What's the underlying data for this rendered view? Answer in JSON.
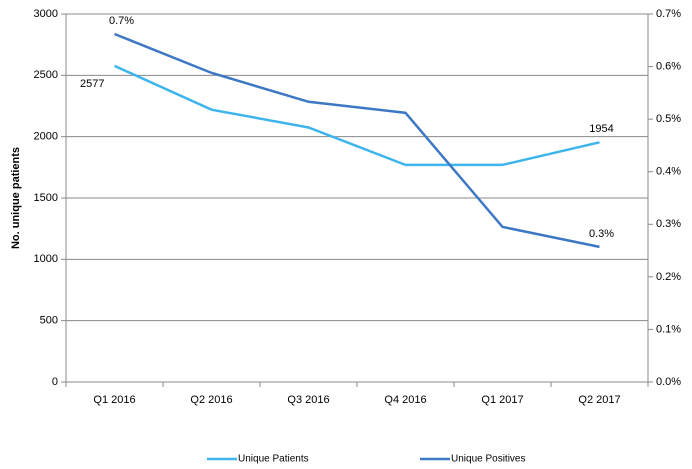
{
  "chart_data": {
    "type": "line",
    "y_label": "No. unique patients",
    "categories": [
      "Q1 2016",
      "Q2 2016",
      "Q3 2016",
      "Q4 2016",
      "Q1 2017",
      "Q2 2017"
    ],
    "series": [
      {
        "name": "Unique Patients",
        "color": "#3db5ec",
        "values": [
          2577,
          2220,
          2075,
          1770,
          1770,
          1954
        ],
        "value_labels": [
          "2577",
          null,
          null,
          null,
          null,
          "1954"
        ]
      },
      {
        "name": "Unique Positives",
        "color": "#3d78c4",
        "axis": "y2",
        "values": [
          0.662,
          0.588,
          0.533,
          0.512,
          0.295,
          0.257
        ],
        "value_labels": [
          "0.7%",
          null,
          null,
          null,
          null,
          "0.3%"
        ]
      }
    ],
    "ylim": [
      0,
      3000
    ],
    "yticks": [
      0,
      500,
      1000,
      1500,
      2000,
      2500,
      3000
    ],
    "y2lim": [
      0,
      0.7
    ],
    "y2ticks": [
      {
        "value": 0,
        "label": "0.0%"
      },
      {
        "value": 0.1,
        "label": "0.1%"
      },
      {
        "value": 0.2,
        "label": "0.2%"
      },
      {
        "value": 0.3,
        "label": "0.3%"
      },
      {
        "value": 0.4,
        "label": "0.4%"
      },
      {
        "value": 0.5,
        "label": "0.5%"
      },
      {
        "value": 0.6,
        "label": "0.6%"
      },
      {
        "value": 0.7,
        "label": "0.7%"
      }
    ],
    "grid": true,
    "legend": "bottom"
  }
}
